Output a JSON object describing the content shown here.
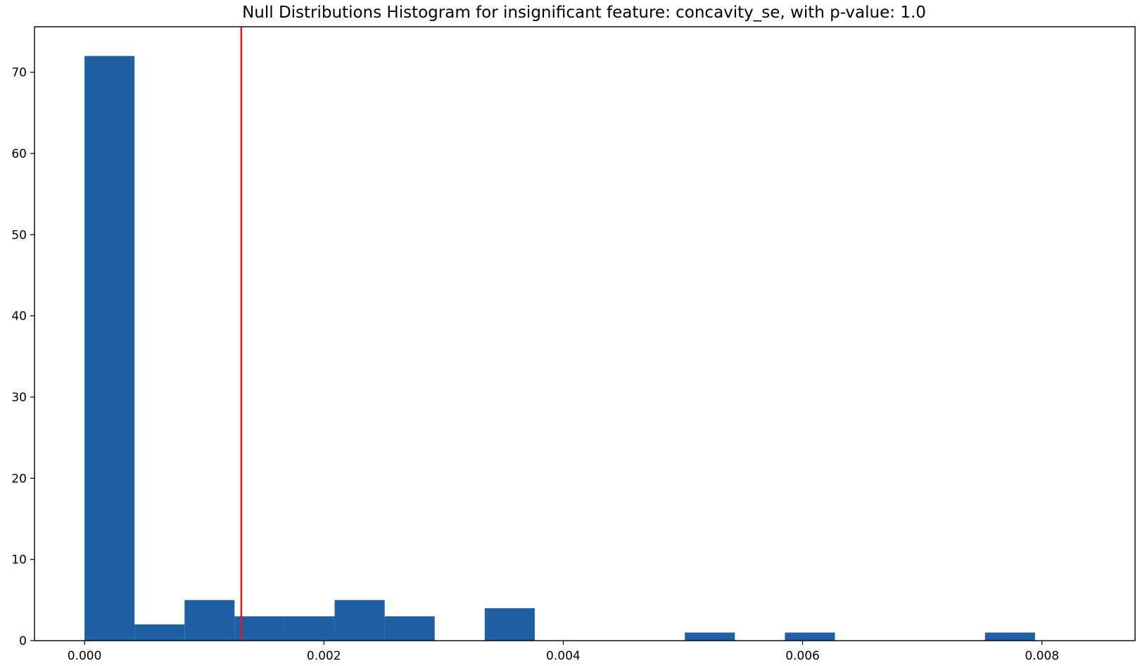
{
  "chart_data": {
    "type": "bar",
    "title": "Null Distributions Histogram for insignificant feature: concavity_se, with p-value: 1.0",
    "xlabel": "",
    "ylabel": "",
    "bin_edges": [
      0.0,
      0.000418,
      0.000836,
      0.001254,
      0.001672,
      0.00209,
      0.002508,
      0.002926,
      0.003344,
      0.003762,
      0.00418,
      0.004598,
      0.005016,
      0.005434,
      0.005852,
      0.00627,
      0.006688,
      0.007106,
      0.007524,
      0.007942,
      0.00836
    ],
    "counts": [
      72,
      2,
      5,
      3,
      3,
      5,
      3,
      0,
      4,
      0,
      0,
      0,
      1,
      0,
      1,
      0,
      0,
      0,
      1,
      0
    ],
    "xlim": [
      -0.000418,
      0.008778
    ],
    "ylim": [
      0,
      75.6
    ],
    "xticks": [
      0.0,
      0.002,
      0.004,
      0.006,
      0.008
    ],
    "xtick_labels": [
      "0.000",
      "0.002",
      "0.004",
      "0.006",
      "0.008"
    ],
    "yticks": [
      0,
      10,
      20,
      30,
      40,
      50,
      60,
      70
    ],
    "ytick_labels": [
      "0",
      "10",
      "20",
      "30",
      "40",
      "50",
      "60",
      "70"
    ],
    "reference_line": {
      "x": 0.00131
    },
    "bar_color": "#1f5fa3",
    "line_color": "#e8141b",
    "grid": false,
    "legend": "none"
  }
}
